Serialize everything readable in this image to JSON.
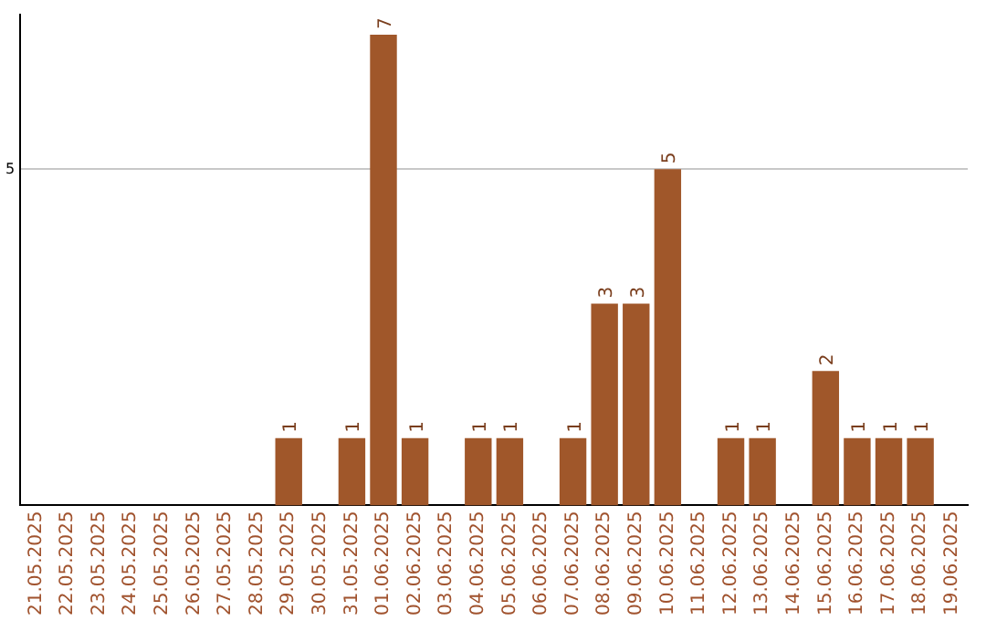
{
  "chart_data": {
    "type": "bar",
    "categories": [
      "21.05.2025",
      "22.05.2025",
      "23.05.2025",
      "24.05.2025",
      "25.05.2025",
      "26.05.2025",
      "27.05.2025",
      "28.05.2025",
      "29.05.2025",
      "30.05.2025",
      "31.05.2025",
      "01.06.2025",
      "02.06.2025",
      "03.06.2025",
      "04.06.2025",
      "05.06.2025",
      "06.06.2025",
      "07.06.2025",
      "08.06.2025",
      "09.06.2025",
      "10.06.2025",
      "11.06.2025",
      "12.06.2025",
      "13.06.2025",
      "14.06.2025",
      "15.06.2025",
      "16.06.2025",
      "17.06.2025",
      "18.06.2025",
      "19.06.2025"
    ],
    "values": [
      0,
      0,
      0,
      0,
      0,
      0,
      0,
      0,
      1,
      0,
      1,
      7,
      1,
      0,
      1,
      1,
      0,
      1,
      3,
      3,
      5,
      0,
      1,
      1,
      0,
      2,
      1,
      1,
      1,
      0
    ],
    "value_labels": [
      null,
      null,
      null,
      null,
      null,
      null,
      null,
      null,
      "1",
      null,
      "1",
      "7",
      "1",
      null,
      "1",
      "1",
      null,
      "1",
      "3",
      "3",
      "5",
      null,
      "1",
      "1",
      null,
      "2",
      "1",
      "1",
      "1",
      null
    ],
    "color": "#a0572a",
    "ylim": [
      0,
      7.3
    ],
    "yticks": [
      5
    ],
    "grid": "y",
    "legend": false
  }
}
